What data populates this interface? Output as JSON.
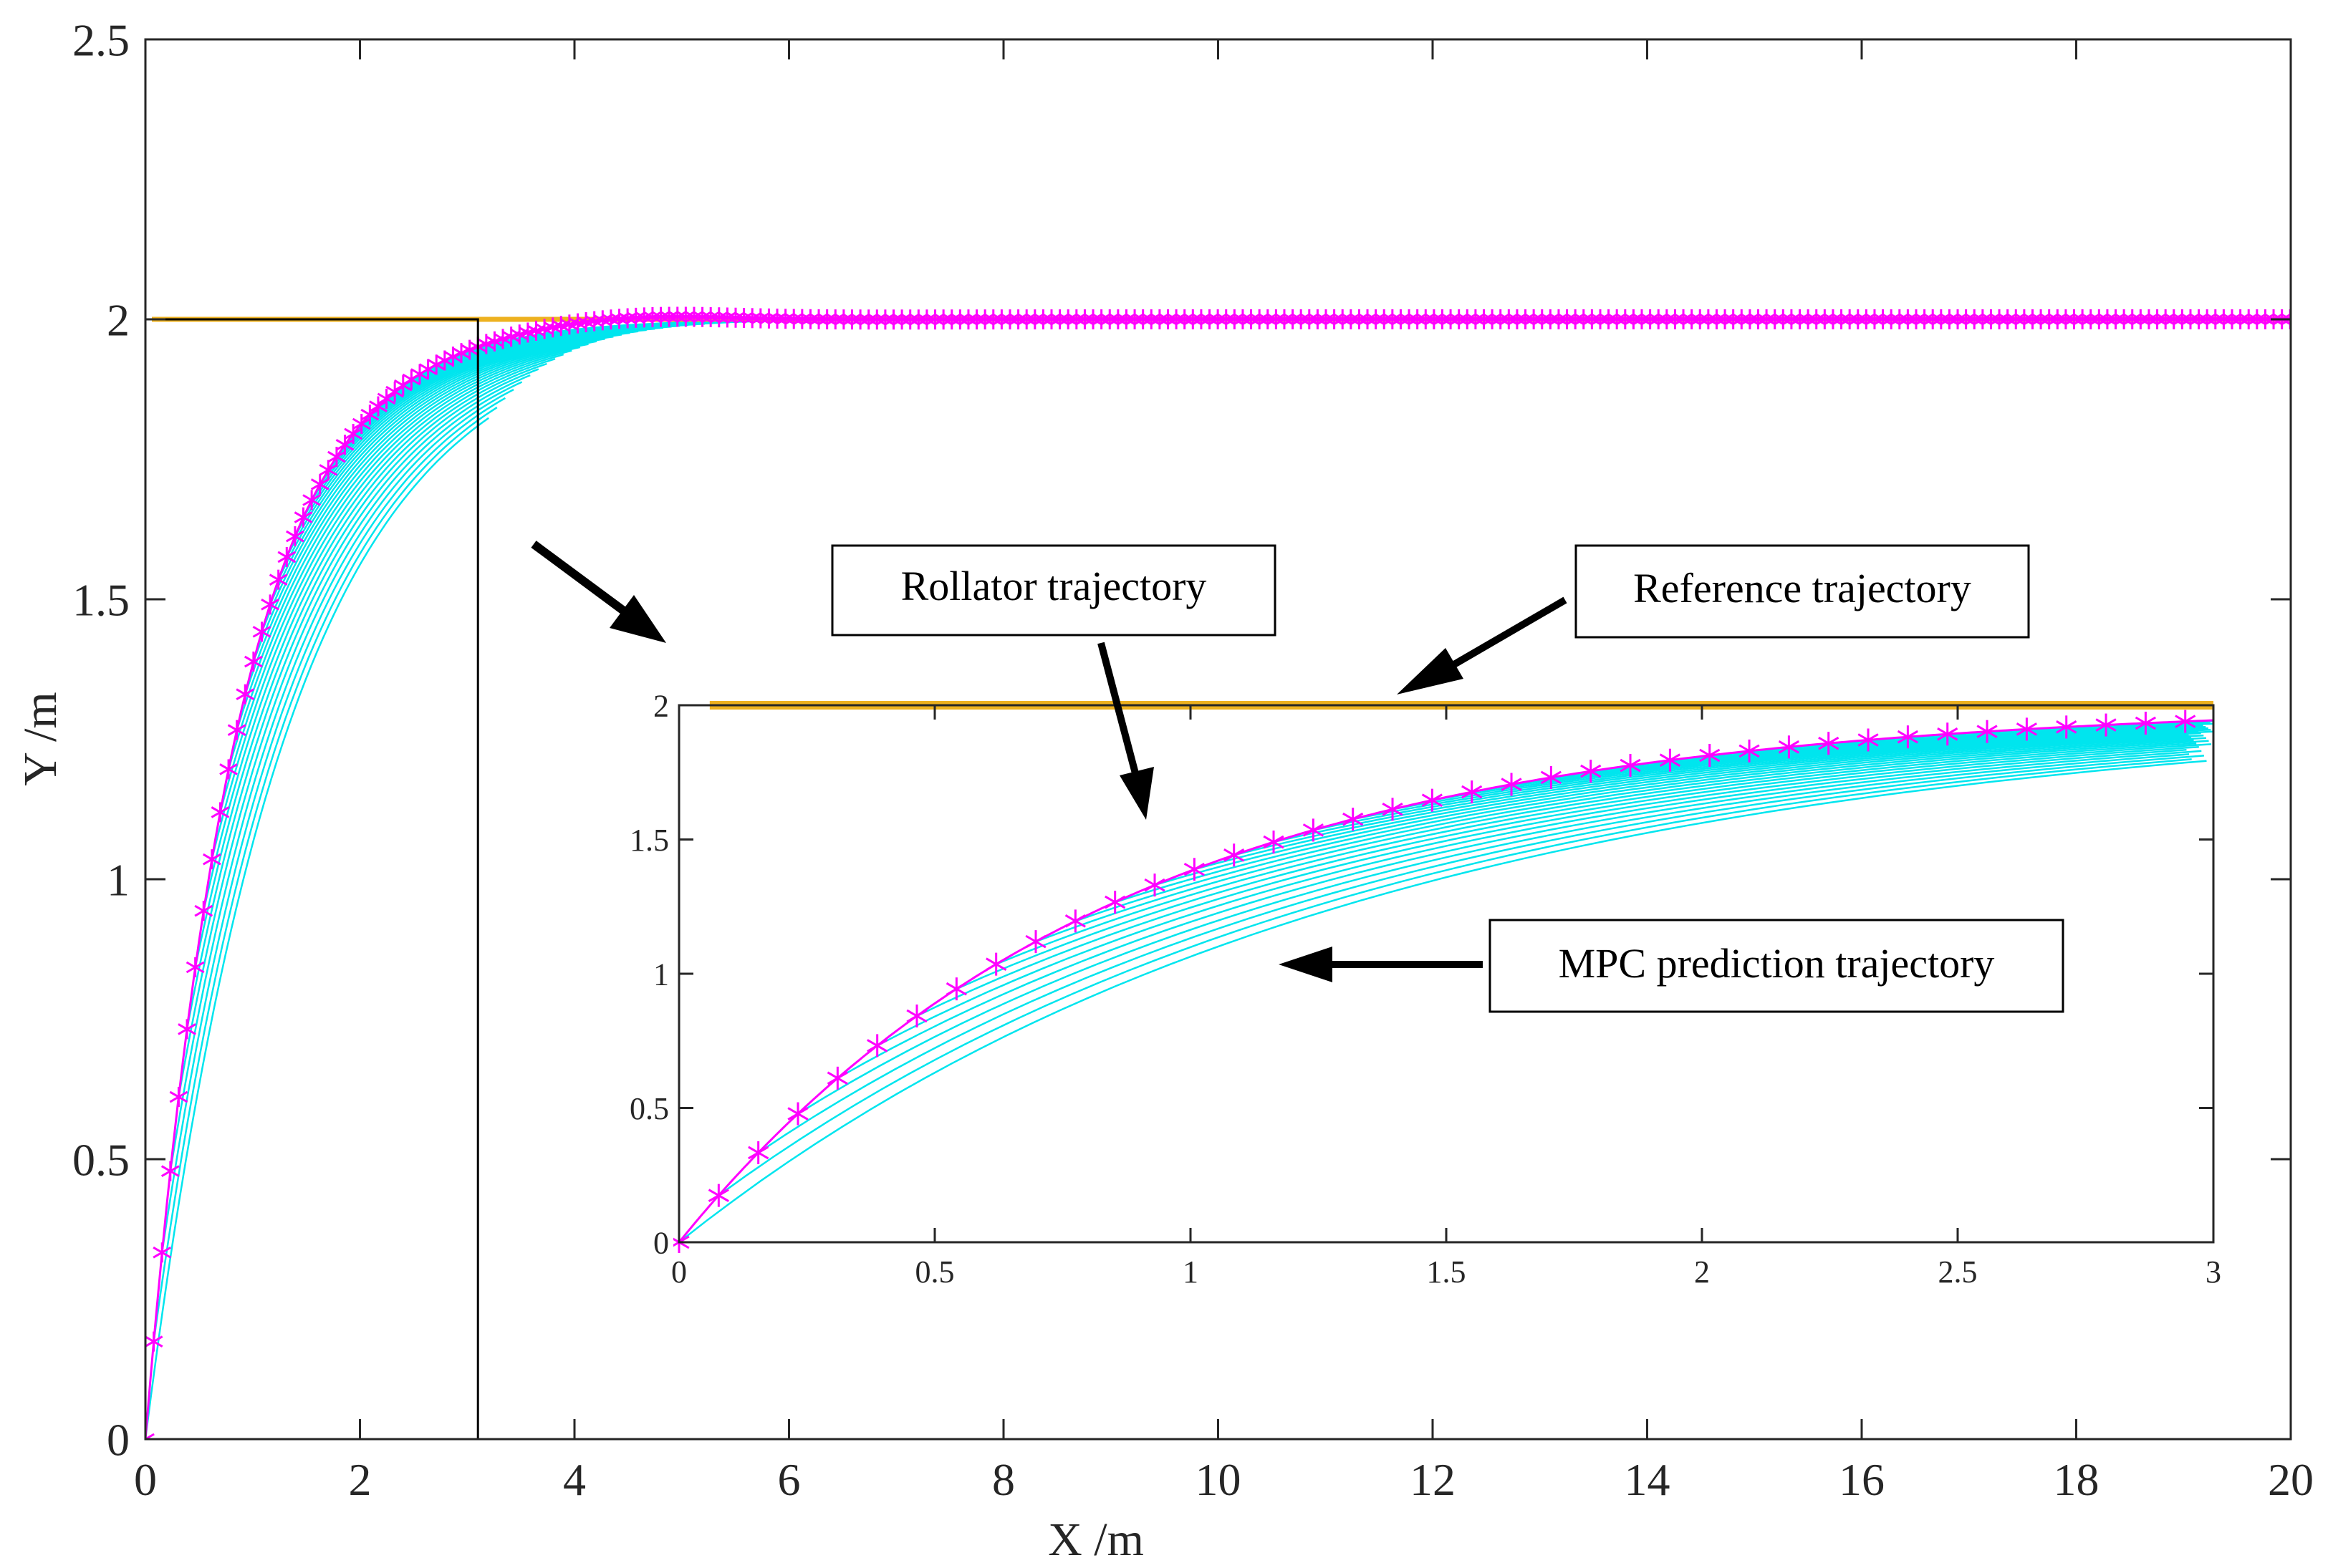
{
  "chart_data": {
    "type": "line",
    "main": {
      "xlabel": "X /m",
      "ylabel": "Y /m",
      "xlim": [
        0,
        20
      ],
      "ylim": [
        0,
        2.5
      ],
      "xticks": [
        0,
        2,
        4,
        6,
        8,
        10,
        12,
        14,
        16,
        18,
        20
      ],
      "xtick_labels": [
        "0",
        "2",
        "4",
        "6",
        "8",
        "10",
        "12",
        "14",
        "16",
        "18",
        "20"
      ],
      "yticks": [
        0,
        0.5,
        1,
        1.5,
        2,
        2.5
      ],
      "ytick_labels": [
        "0",
        "0.5",
        "1",
        "1.5",
        "2",
        "2.5"
      ],
      "zoom_box": {
        "x": [
          0,
          3.1
        ],
        "y": [
          0,
          2.0
        ]
      }
    },
    "inset": {
      "xlim": [
        0,
        3
      ],
      "ylim": [
        0,
        2
      ],
      "xticks": [
        0,
        0.5,
        1,
        1.5,
        2,
        2.5,
        3
      ],
      "xtick_labels": [
        "0",
        "0.5",
        "1",
        "1.5",
        "2",
        "2.5",
        "3"
      ],
      "yticks": [
        0,
        0.5,
        1,
        1.5,
        2
      ],
      "ytick_labels": [
        "0",
        "0.5",
        "1",
        "1.5",
        "2"
      ]
    },
    "series": [
      {
        "name": "Reference trajectory",
        "color": "#EDB120",
        "x": [
          0,
          20
        ],
        "y": [
          2,
          2
        ]
      },
      {
        "name": "Rollator trajectory",
        "color": "#FF00FF",
        "marker": "asterisk",
        "decay_constant": 0.85,
        "x_start": 0,
        "x_end": 20,
        "marker_spacing_main": 0.0775,
        "marker_spacing_inset": 0.0775,
        "overshoot_peak": 2.012
      },
      {
        "name": "MPC prediction trajectory",
        "color": "#00E5EE",
        "count": 40,
        "horizon": 3.2
      }
    ],
    "annotations": [
      {
        "text": "Rollator trajectory",
        "color": "#000000"
      },
      {
        "text": "Reference trajectory",
        "color": "#000000"
      },
      {
        "text": "MPC prediction trajectory",
        "color": "#000000"
      }
    ]
  }
}
